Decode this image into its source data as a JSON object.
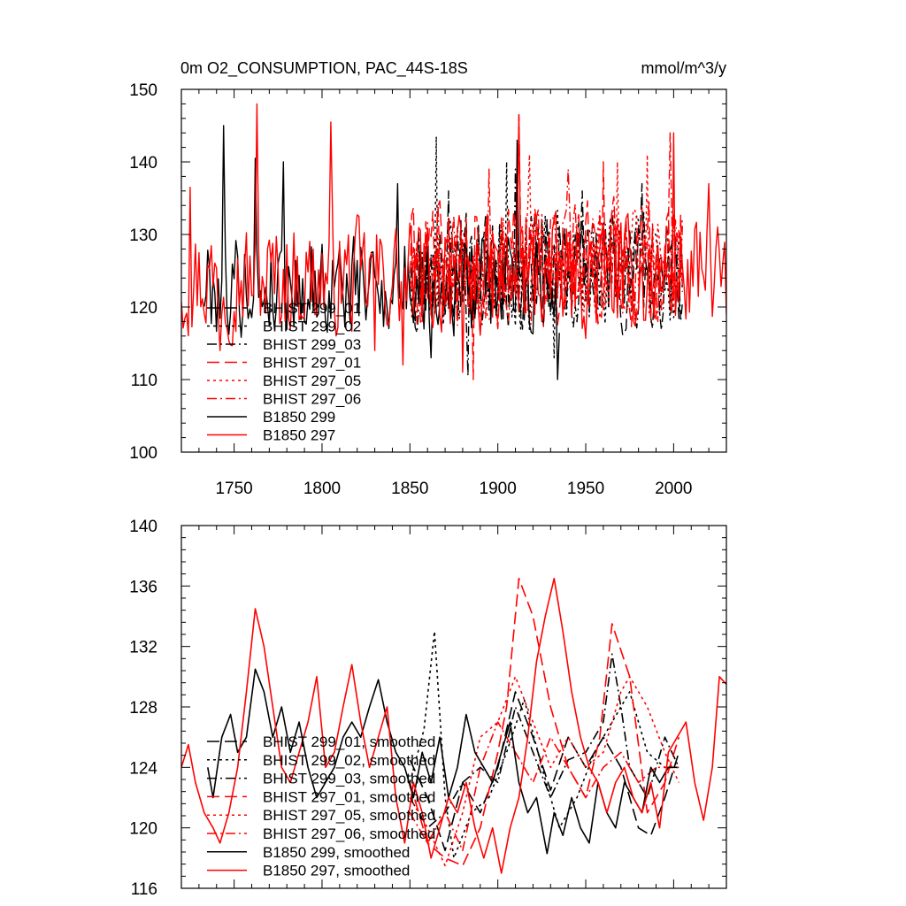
{
  "chart_data": [
    {
      "type": "line",
      "title": "0m O2_CONSUMPTION, PAC_44S-18S",
      "units": "mmol/m^3/y",
      "xlim": [
        1720,
        2030
      ],
      "ylim": [
        100,
        150
      ],
      "yticks": [
        100,
        110,
        120,
        130,
        140,
        150
      ],
      "xticks": [
        1750,
        1800,
        1850,
        1900,
        1950,
        2000
      ],
      "legend_position": "lower-left",
      "series": [
        {
          "name": "BHIST 299_01",
          "color": "#000000",
          "dash": "long-dash",
          "x_start": 1850,
          "x_end": 2005,
          "mean": 125,
          "amp": 8,
          "seed": 11,
          "extremes": [
            [
              1872,
              136
            ],
            [
              1925,
              132
            ],
            [
              1982,
              137
            ]
          ]
        },
        {
          "name": "BHIST 299_02",
          "color": "#000000",
          "dash": "dot",
          "x_start": 1850,
          "x_end": 2005,
          "mean": 125,
          "amp": 8,
          "seed": 23,
          "extremes": [
            [
              1865,
              143.5
            ],
            [
              1905,
              140
            ],
            [
              1932,
              113
            ]
          ]
        },
        {
          "name": "BHIST 299_03",
          "color": "#000000",
          "dash": "dash-dot",
          "x_start": 1850,
          "x_end": 2005,
          "mean": 125,
          "amp": 8,
          "seed": 37,
          "extremes": [
            [
              1883,
              110.5
            ],
            [
              1910,
              139
            ],
            [
              1948,
              136
            ]
          ]
        },
        {
          "name": "BHIST 297_01",
          "color": "#ff0000",
          "dash": "long-dash",
          "x_start": 1850,
          "x_end": 2005,
          "mean": 126,
          "amp": 8.5,
          "seed": 41,
          "extremes": [
            [
              1886,
              110
            ],
            [
              1912,
              146.5
            ],
            [
              1960,
              140
            ]
          ]
        },
        {
          "name": "BHIST 297_05",
          "color": "#ff0000",
          "dash": "dot",
          "x_start": 1850,
          "x_end": 2005,
          "mean": 126,
          "amp": 8.5,
          "seed": 53,
          "extremes": [
            [
              1918,
              141
            ],
            [
              1968,
              140
            ],
            [
              1985,
              141
            ]
          ]
        },
        {
          "name": "BHIST 297_06",
          "color": "#ff0000",
          "dash": "dash-dot",
          "x_start": 1850,
          "x_end": 2005,
          "mean": 126,
          "amp": 8.5,
          "seed": 67,
          "extremes": [
            [
              1895,
              139
            ],
            [
              1940,
              139
            ],
            [
              1998,
              144
            ]
          ]
        },
        {
          "name": "B1850 299",
          "color": "#000000",
          "dash": "solid",
          "x_start": 1733,
          "x_end": 1935,
          "mean": 123,
          "amp": 7,
          "seed": 79,
          "extremes": [
            [
              1744,
              145
            ],
            [
              1762,
              140.5
            ],
            [
              1778,
              140
            ],
            [
              1843,
              137
            ],
            [
              1862,
              113
            ],
            [
              1934,
              110
            ],
            [
              1911,
              143
            ]
          ]
        },
        {
          "name": "B1850 297",
          "color": "#ff0000",
          "dash": "solid",
          "x_start": 1720,
          "x_end": 2030,
          "mean": 124,
          "amp": 8,
          "seed": 97,
          "extremes": [
            [
              1725,
              136.5
            ],
            [
              1742,
              114
            ],
            [
              1763,
              148
            ],
            [
              1805,
              145.5
            ],
            [
              1830,
              114
            ],
            [
              1846,
              112
            ],
            [
              1880,
              111
            ],
            [
              1912,
              146.5
            ],
            [
              2000,
              144
            ],
            [
              2020,
              137
            ],
            [
              2030,
              119
            ]
          ]
        }
      ]
    },
    {
      "type": "line",
      "title": "",
      "xlim": [
        1720,
        2030
      ],
      "ylim": [
        116,
        140
      ],
      "yticks": [
        116,
        120,
        124,
        128,
        132,
        136,
        140
      ],
      "xticks": [
        1750,
        1800,
        1850,
        1900,
        1950,
        2000
      ],
      "legend_position": "lower-left",
      "series": [
        {
          "name": "BHIST 299_01, smoothed",
          "color": "#000000",
          "dash": "long-dash",
          "x": [
            1850,
            1860,
            1870,
            1880,
            1890,
            1900,
            1910,
            1920,
            1930,
            1940,
            1950,
            1960,
            1970,
            1980,
            1987,
            1995,
            2003
          ],
          "y": [
            124.5,
            122,
            118.5,
            123,
            121,
            124,
            129,
            126,
            122.5,
            126,
            124,
            126,
            124,
            120,
            119.5,
            122,
            125
          ]
        },
        {
          "name": "BHIST 299_02, smoothed",
          "color": "#000000",
          "dash": "dot",
          "x": [
            1850,
            1858,
            1864,
            1870,
            1875,
            1885,
            1895,
            1905,
            1915,
            1925,
            1935,
            1945,
            1955,
            1965,
            1975,
            1985,
            1995,
            2003
          ],
          "y": [
            123,
            126.5,
            133,
            122,
            118,
            121,
            122,
            125,
            128.5,
            124,
            120,
            122,
            125,
            127,
            129,
            125,
            124,
            124
          ]
        },
        {
          "name": "BHIST 299_03, smoothed",
          "color": "#000000",
          "dash": "dash-dot",
          "x": [
            1850,
            1860,
            1870,
            1880,
            1890,
            1900,
            1910,
            1920,
            1930,
            1940,
            1950,
            1960,
            1965,
            1970,
            1975,
            1985,
            1995,
            2003
          ],
          "y": [
            122,
            120,
            121,
            123,
            124,
            123,
            128,
            125,
            122,
            124.5,
            125,
            127,
            131.5,
            128,
            124,
            122,
            126,
            124
          ]
        },
        {
          "name": "BHIST 297_01, smoothed",
          "color": "#ff0000",
          "dash": "long-dash",
          "x": [
            1850,
            1860,
            1870,
            1880,
            1890,
            1900,
            1905,
            1912,
            1920,
            1930,
            1940,
            1950,
            1958,
            1965,
            1975,
            1985,
            1995,
            2003
          ],
          "y": [
            123,
            119,
            118,
            117.5,
            120,
            125,
            128,
            136.5,
            134,
            128,
            124,
            122,
            126,
            133.5,
            130,
            121,
            123,
            126
          ]
        },
        {
          "name": "BHIST 297_05, smoothed",
          "color": "#ff0000",
          "dash": "dot",
          "x": [
            1850,
            1860,
            1870,
            1880,
            1890,
            1900,
            1910,
            1920,
            1930,
            1940,
            1950,
            1960,
            1970,
            1975,
            1985,
            1995,
            2003
          ],
          "y": [
            122,
            120,
            117.5,
            121,
            126,
            127,
            130,
            127,
            124,
            126,
            124,
            125,
            129,
            130,
            128,
            125,
            123
          ]
        },
        {
          "name": "BHIST 297_06, smoothed",
          "color": "#ff0000",
          "dash": "dash-dot",
          "x": [
            1850,
            1860,
            1870,
            1880,
            1890,
            1900,
            1910,
            1920,
            1930,
            1940,
            1950,
            1960,
            1970,
            1980,
            1990,
            2003
          ],
          "y": [
            121,
            119,
            121,
            118.5,
            124,
            127,
            125,
            123,
            126,
            124,
            122,
            124,
            125,
            123,
            124,
            124
          ]
        },
        {
          "name": "B1850 299, smoothed",
          "color": "#000000",
          "dash": "solid",
          "x": [
            1735,
            1738,
            1743,
            1748,
            1752,
            1757,
            1762,
            1767,
            1772,
            1777,
            1782,
            1787,
            1792,
            1797,
            1802,
            1807,
            1812,
            1817,
            1822,
            1827,
            1832,
            1837,
            1842,
            1847,
            1852,
            1857,
            1862,
            1867,
            1872,
            1877,
            1882,
            1887,
            1892,
            1897,
            1902,
            1907,
            1912,
            1917,
            1922,
            1928,
            1932,
            1937,
            1942,
            1947,
            1952,
            1957,
            1962,
            1967,
            1972,
            1977,
            1982,
            1987,
            1992,
            1997,
            2002
          ],
          "y": [
            124,
            122,
            126,
            127.5,
            125,
            126,
            130.5,
            129,
            126,
            128,
            125,
            127,
            124,
            122,
            123,
            124,
            126,
            127,
            126,
            128,
            129.8,
            127,
            125,
            124,
            122,
            125,
            123,
            126,
            122,
            124,
            127.5,
            125,
            124,
            123,
            125,
            127,
            123,
            121,
            122,
            118.3,
            121,
            119.5,
            122,
            120,
            119,
            123,
            121,
            120,
            123,
            122,
            121,
            124,
            123,
            124,
            124
          ]
        },
        {
          "name": "B1850 297, smoothed",
          "color": "#ff0000",
          "dash": "solid",
          "x": [
            1720,
            1724,
            1728,
            1733,
            1738,
            1742,
            1747,
            1752,
            1757,
            1762,
            1767,
            1772,
            1777,
            1782,
            1787,
            1792,
            1797,
            1802,
            1807,
            1812,
            1817,
            1822,
            1827,
            1832,
            1837,
            1842,
            1847,
            1852,
            1857,
            1862,
            1867,
            1872,
            1877,
            1882,
            1887,
            1892,
            1897,
            1902,
            1907,
            1912,
            1917,
            1922,
            1927,
            1932,
            1937,
            1942,
            1947,
            1952,
            1957,
            1962,
            1967,
            1972,
            1977,
            1982,
            1987,
            1992,
            1997,
            2002,
            2007,
            2012,
            2017,
            2022,
            2026,
            2030
          ],
          "y": [
            124,
            125.5,
            123,
            121,
            120,
            119,
            121,
            124,
            129,
            134.5,
            132,
            128,
            124,
            123,
            125,
            127,
            130,
            124,
            125,
            128,
            130.8,
            127,
            124,
            126,
            128,
            122,
            119,
            123,
            121,
            118,
            120,
            122,
            121,
            123,
            120,
            118,
            120,
            117,
            120,
            122,
            126,
            131,
            134,
            136.5,
            133,
            129,
            126,
            124,
            123,
            121,
            123,
            124,
            122,
            121,
            123,
            120,
            125,
            126,
            127,
            123,
            120.5,
            124,
            130,
            129.5
          ]
        }
      ]
    }
  ]
}
